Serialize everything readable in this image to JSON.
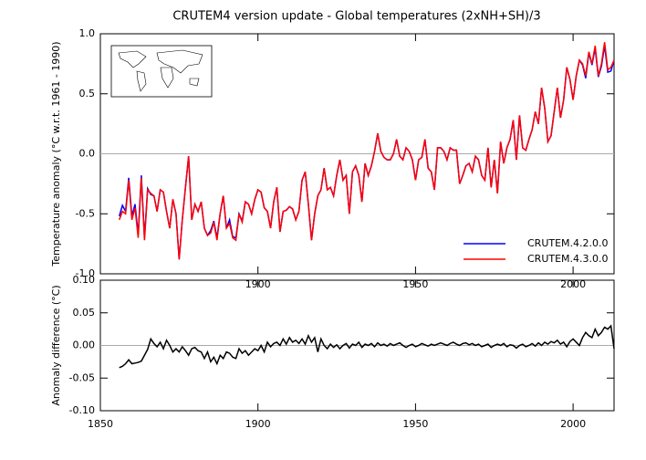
{
  "chart_data": [
    {
      "type": "line",
      "title": "CRUTEM4 version update - Global temperatures (2xNH+SH)/3",
      "y_label": "Temperature anomaly (°C w.r.t. 1961 - 1990)",
      "xlim": [
        1850,
        2013
      ],
      "xticks": [
        1900,
        1950,
        2000
      ],
      "ylim": [
        -1,
        1
      ],
      "yticks": [
        {
          "value": -1,
          "label": "-1.0"
        },
        {
          "value": -0.5,
          "label": "-0.5"
        },
        {
          "value": 0,
          "label": "0.0"
        },
        {
          "value": 0.5,
          "label": "0.5"
        },
        {
          "value": 1,
          "label": "1.0"
        }
      ],
      "legend": "lower right",
      "x": [
        1856,
        1857,
        1858,
        1859,
        1860,
        1861,
        1862,
        1863,
        1864,
        1865,
        1866,
        1867,
        1868,
        1869,
        1870,
        1871,
        1872,
        1873,
        1874,
        1875,
        1876,
        1877,
        1878,
        1879,
        1880,
        1881,
        1882,
        1883,
        1884,
        1885,
        1886,
        1887,
        1888,
        1889,
        1890,
        1891,
        1892,
        1893,
        1894,
        1895,
        1896,
        1897,
        1898,
        1899,
        1900,
        1901,
        1902,
        1903,
        1904,
        1905,
        1906,
        1907,
        1908,
        1909,
        1910,
        1911,
        1912,
        1913,
        1914,
        1915,
        1916,
        1917,
        1918,
        1919,
        1920,
        1921,
        1922,
        1923,
        1924,
        1925,
        1926,
        1927,
        1928,
        1929,
        1930,
        1931,
        1932,
        1933,
        1934,
        1935,
        1936,
        1937,
        1938,
        1939,
        1940,
        1941,
        1942,
        1943,
        1944,
        1945,
        1946,
        1947,
        1948,
        1949,
        1950,
        1951,
        1952,
        1953,
        1954,
        1955,
        1956,
        1957,
        1958,
        1959,
        1960,
        1961,
        1962,
        1963,
        1964,
        1965,
        1966,
        1967,
        1968,
        1969,
        1970,
        1971,
        1972,
        1973,
        1974,
        1975,
        1976,
        1977,
        1978,
        1979,
        1980,
        1981,
        1982,
        1983,
        1984,
        1985,
        1986,
        1987,
        1988,
        1989,
        1990,
        1991,
        1992,
        1993,
        1994,
        1995,
        1996,
        1997,
        1998,
        1999,
        2000,
        2001,
        2002,
        2003,
        2004,
        2005,
        2006,
        2007,
        2008,
        2009,
        2010,
        2011,
        2012,
        2013
      ],
      "series": [
        {
          "name": "CRUTEM.4.2.0.0",
          "color": "#0000ff",
          "values": [
            -0.52,
            -0.43,
            -0.48,
            -0.2,
            -0.52,
            -0.42,
            -0.67,
            -0.18,
            -0.7,
            -0.29,
            -0.34,
            -0.35,
            -0.48,
            -0.3,
            -0.32,
            -0.48,
            -0.62,
            -0.38,
            -0.5,
            -0.88,
            -0.55,
            -0.28,
            -0.02,
            -0.55,
            -0.42,
            -0.48,
            -0.4,
            -0.62,
            -0.68,
            -0.64,
            -0.56,
            -0.7,
            -0.5,
            -0.35,
            -0.62,
            -0.55,
            -0.69,
            -0.7,
            -0.5,
            -0.56,
            -0.4,
            -0.42,
            -0.5,
            -0.38,
            -0.3,
            -0.32,
            -0.45,
            -0.48,
            -0.62,
            -0.4,
            -0.28,
            -0.65,
            -0.48,
            -0.47,
            -0.44,
            -0.46,
            -0.55,
            -0.48,
            -0.22,
            -0.15,
            -0.42,
            -0.72,
            -0.5,
            -0.35,
            -0.3,
            -0.12,
            -0.3,
            -0.28,
            -0.35,
            -0.18,
            -0.05,
            -0.22,
            -0.18,
            -0.5,
            -0.15,
            -0.1,
            -0.18,
            -0.4,
            -0.08,
            -0.18,
            -0.1,
            0.02,
            0.17,
            0.02,
            -0.03,
            -0.05,
            -0.05,
            0.0,
            0.12,
            -0.02,
            -0.05,
            0.05,
            0.02,
            -0.05,
            -0.22,
            -0.05,
            -0.03,
            0.12,
            -0.12,
            -0.15,
            -0.3,
            0.05,
            0.05,
            0.02,
            -0.05,
            0.05,
            0.03,
            0.03,
            -0.25,
            -0.18,
            -0.1,
            -0.08,
            -0.15,
            -0.02,
            -0.05,
            -0.18,
            -0.22,
            0.05,
            -0.28,
            -0.05,
            -0.33,
            0.1,
            -0.08,
            0.05,
            0.12,
            0.28,
            -0.05,
            0.32,
            0.05,
            0.03,
            0.12,
            0.2,
            0.35,
            0.25,
            0.55,
            0.38,
            0.1,
            0.15,
            0.35,
            0.55,
            0.3,
            0.45,
            0.72,
            0.62,
            0.45,
            0.65,
            0.78,
            0.74,
            0.63,
            0.84,
            0.74,
            0.88,
            0.64,
            0.73,
            0.9,
            0.68,
            0.69,
            0.78
          ]
        },
        {
          "name": "CRUTEM.4.3.0.0",
          "color": "#ff0000",
          "values": [
            -0.55,
            -0.48,
            -0.5,
            -0.22,
            -0.55,
            -0.45,
            -0.7,
            -0.2,
            -0.72,
            -0.3,
            -0.33,
            -0.35,
            -0.48,
            -0.3,
            -0.32,
            -0.48,
            -0.62,
            -0.38,
            -0.5,
            -0.88,
            -0.55,
            -0.28,
            -0.02,
            -0.55,
            -0.42,
            -0.48,
            -0.4,
            -0.62,
            -0.68,
            -0.66,
            -0.57,
            -0.72,
            -0.5,
            -0.35,
            -0.62,
            -0.58,
            -0.7,
            -0.72,
            -0.5,
            -0.57,
            -0.4,
            -0.42,
            -0.5,
            -0.38,
            -0.3,
            -0.32,
            -0.45,
            -0.48,
            -0.62,
            -0.4,
            -0.28,
            -0.65,
            -0.48,
            -0.47,
            -0.44,
            -0.46,
            -0.55,
            -0.48,
            -0.22,
            -0.15,
            -0.42,
            -0.72,
            -0.5,
            -0.35,
            -0.3,
            -0.12,
            -0.3,
            -0.28,
            -0.35,
            -0.18,
            -0.05,
            -0.22,
            -0.18,
            -0.5,
            -0.15,
            -0.1,
            -0.18,
            -0.4,
            -0.08,
            -0.18,
            -0.1,
            0.02,
            0.17,
            0.02,
            -0.03,
            -0.05,
            -0.05,
            0.0,
            0.12,
            -0.02,
            -0.05,
            0.05,
            0.02,
            -0.05,
            -0.22,
            -0.05,
            -0.03,
            0.12,
            -0.12,
            -0.15,
            -0.3,
            0.05,
            0.05,
            0.02,
            -0.05,
            0.05,
            0.03,
            0.03,
            -0.25,
            -0.18,
            -0.1,
            -0.08,
            -0.15,
            -0.02,
            -0.05,
            -0.18,
            -0.22,
            0.05,
            -0.28,
            -0.05,
            -0.33,
            0.1,
            -0.08,
            0.05,
            0.12,
            0.28,
            -0.05,
            0.32,
            0.05,
            0.03,
            0.12,
            0.2,
            0.35,
            0.25,
            0.55,
            0.38,
            0.1,
            0.15,
            0.35,
            0.55,
            0.3,
            0.45,
            0.72,
            0.62,
            0.45,
            0.65,
            0.78,
            0.75,
            0.65,
            0.85,
            0.75,
            0.9,
            0.65,
            0.75,
            0.93,
            0.7,
            0.72,
            0.78
          ]
        }
      ]
    },
    {
      "type": "line",
      "y_label": "Anomaly difference (°C)",
      "xlim": [
        1850,
        2013
      ],
      "xticks": [
        1850,
        1900,
        1950,
        2000
      ],
      "ylim": [
        -0.1,
        0.1
      ],
      "yticks": [
        {
          "value": -0.1,
          "label": "-0.10"
        },
        {
          "value": -0.05,
          "label": "-0.05"
        },
        {
          "value": 0,
          "label": "0.00"
        },
        {
          "value": 0.05,
          "label": "0.05"
        },
        {
          "value": 0.1,
          "label": "0.10"
        }
      ],
      "x": [
        1856,
        1857,
        1858,
        1859,
        1860,
        1861,
        1862,
        1863,
        1864,
        1865,
        1866,
        1867,
        1868,
        1869,
        1870,
        1871,
        1872,
        1873,
        1874,
        1875,
        1876,
        1877,
        1878,
        1879,
        1880,
        1881,
        1882,
        1883,
        1884,
        1885,
        1886,
        1887,
        1888,
        1889,
        1890,
        1891,
        1892,
        1893,
        1894,
        1895,
        1896,
        1897,
        1898,
        1899,
        1900,
        1901,
        1902,
        1903,
        1904,
        1905,
        1906,
        1907,
        1908,
        1909,
        1910,
        1911,
        1912,
        1913,
        1914,
        1915,
        1916,
        1917,
        1918,
        1919,
        1920,
        1921,
        1922,
        1923,
        1924,
        1925,
        1926,
        1927,
        1928,
        1929,
        1930,
        1931,
        1932,
        1933,
        1934,
        1935,
        1936,
        1937,
        1938,
        1939,
        1940,
        1941,
        1942,
        1943,
        1944,
        1945,
        1946,
        1947,
        1948,
        1949,
        1950,
        1951,
        1952,
        1953,
        1954,
        1955,
        1956,
        1957,
        1958,
        1959,
        1960,
        1961,
        1962,
        1963,
        1964,
        1965,
        1966,
        1967,
        1968,
        1969,
        1970,
        1971,
        1972,
        1973,
        1974,
        1975,
        1976,
        1977,
        1978,
        1979,
        1980,
        1981,
        1982,
        1983,
        1984,
        1985,
        1986,
        1987,
        1988,
        1989,
        1990,
        1991,
        1992,
        1993,
        1994,
        1995,
        1996,
        1997,
        1998,
        1999,
        2000,
        2001,
        2002,
        2003,
        2004,
        2005,
        2006,
        2007,
        2008,
        2009,
        2010,
        2011,
        2012,
        2013
      ],
      "series": [
        {
          "color": "#000000",
          "values": [
            -0.034,
            -0.032,
            -0.028,
            -0.022,
            -0.028,
            -0.027,
            -0.026,
            -0.024,
            -0.015,
            -0.006,
            0.01,
            0.003,
            -0.002,
            0.005,
            -0.005,
            0.008,
            0.0,
            -0.01,
            -0.005,
            -0.01,
            -0.002,
            -0.008,
            -0.015,
            -0.005,
            -0.003,
            -0.008,
            -0.01,
            -0.02,
            -0.01,
            -0.025,
            -0.018,
            -0.028,
            -0.015,
            -0.02,
            -0.01,
            -0.012,
            -0.018,
            -0.02,
            -0.005,
            -0.012,
            -0.008,
            -0.015,
            -0.01,
            -0.005,
            -0.008,
            0.0,
            -0.01,
            0.005,
            -0.002,
            0.003,
            0.005,
            0.0,
            0.01,
            0.002,
            0.012,
            0.005,
            0.008,
            0.003,
            0.01,
            0.002,
            0.015,
            0.005,
            0.012,
            -0.01,
            0.01,
            0.0,
            -0.005,
            0.002,
            -0.003,
            0.001,
            -0.005,
            0.0,
            0.003,
            -0.004,
            0.002,
            0.0,
            0.005,
            -0.003,
            0.002,
            0.0,
            0.003,
            -0.002,
            0.004,
            0.0,
            0.002,
            -0.001,
            0.003,
            0.0,
            0.002,
            0.004,
            0.0,
            -0.003,
            0.0,
            0.002,
            -0.002,
            0.0,
            0.003,
            0.001,
            -0.001,
            0.002,
            0.0,
            0.002,
            0.004,
            0.002,
            0.0,
            0.003,
            0.005,
            0.002,
            0.0,
            0.003,
            0.004,
            0.001,
            0.003,
            0.0,
            0.002,
            -0.002,
            0.0,
            0.002,
            -0.003,
            0.0,
            0.002,
            0.0,
            0.003,
            -0.002,
            0.001,
            0.0,
            -0.004,
            0.0,
            0.002,
            -0.002,
            0.0,
            0.003,
            -0.001,
            0.004,
            0.0,
            0.005,
            0.002,
            0.006,
            0.004,
            0.008,
            0.002,
            0.005,
            -0.002,
            0.006,
            0.01,
            0.005,
            0.0,
            0.012,
            0.02,
            0.015,
            0.012,
            0.025,
            0.015,
            0.02,
            0.028,
            0.025,
            0.03,
            -0.005
          ]
        }
      ]
    }
  ]
}
